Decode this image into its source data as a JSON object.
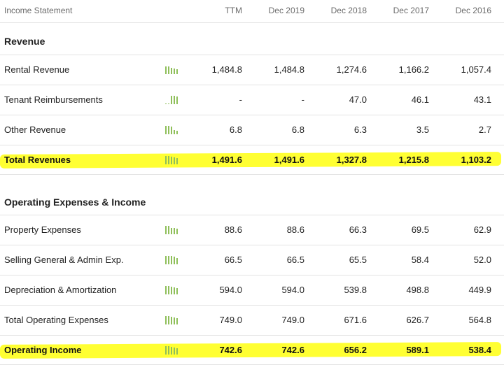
{
  "header": {
    "title": "Income Statement",
    "columns": [
      "TTM",
      "Dec 2019",
      "Dec 2018",
      "Dec 2017",
      "Dec 2016"
    ]
  },
  "sections": {
    "revenue": {
      "title": "Revenue",
      "rows": [
        {
          "label": "Rental Revenue",
          "values": [
            "1,484.8",
            "1,484.8",
            "1,274.6",
            "1,166.2",
            "1,057.4"
          ],
          "spark": [
            0.9,
            0.9,
            0.75,
            0.68,
            0.6
          ]
        },
        {
          "label": "Tenant Reimbursements",
          "values": [
            "-",
            "-",
            "47.0",
            "46.1",
            "43.1"
          ],
          "spark": [
            0,
            0,
            1,
            0.98,
            0.92
          ]
        },
        {
          "label": "Other Revenue",
          "values": [
            "6.8",
            "6.8",
            "6.3",
            "3.5",
            "2.7"
          ],
          "spark": [
            1,
            1,
            0.9,
            0.5,
            0.4
          ]
        },
        {
          "label": "Total Revenues",
          "values": [
            "1,491.6",
            "1,491.6",
            "1,327.8",
            "1,215.8",
            "1,103.2"
          ],
          "spark": [
            1,
            1,
            0.88,
            0.8,
            0.72
          ],
          "highlight": true
        }
      ]
    },
    "operating": {
      "title": "Operating Expenses & Income",
      "rows": [
        {
          "label": "Property Expenses",
          "values": [
            "88.6",
            "88.6",
            "66.3",
            "69.5",
            "62.9"
          ],
          "spark": [
            1,
            1,
            0.75,
            0.78,
            0.7
          ]
        },
        {
          "label": "Selling General & Admin Exp.",
          "values": [
            "66.5",
            "66.5",
            "65.5",
            "58.4",
            "52.0"
          ],
          "spark": [
            1,
            1,
            0.98,
            0.88,
            0.78
          ]
        },
        {
          "label": "Depreciation & Amortization",
          "values": [
            "594.0",
            "594.0",
            "539.8",
            "498.8",
            "449.9"
          ],
          "spark": [
            1,
            1,
            0.9,
            0.84,
            0.76
          ]
        },
        {
          "label": "Total Operating Expenses",
          "values": [
            "749.0",
            "749.0",
            "671.6",
            "626.7",
            "564.8"
          ],
          "spark": [
            1,
            1,
            0.9,
            0.84,
            0.75
          ]
        },
        {
          "label": "Operating Income",
          "values": [
            "742.6",
            "742.6",
            "656.2",
            "589.1",
            "538.4"
          ],
          "spark": [
            1,
            1,
            0.88,
            0.8,
            0.72
          ],
          "highlight": true
        }
      ]
    }
  },
  "colors": {
    "highlight": "#ffff33",
    "sparkline": "#8fbf5a",
    "header_text": "#6b6b6b"
  }
}
